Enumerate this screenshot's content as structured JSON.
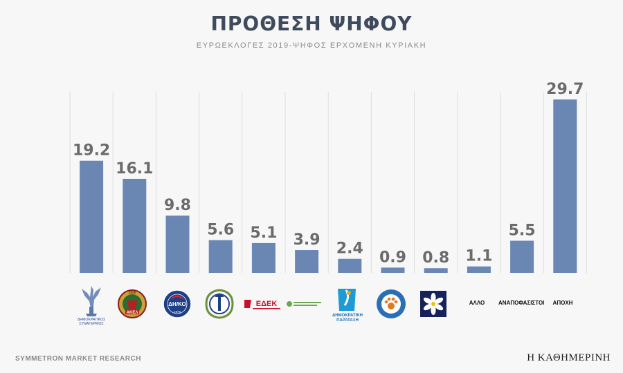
{
  "title": "ΠΡΟΘΕΣΗ ΨΗΦΟΥ",
  "subtitle": "ΕΥΡΩΕΚΛΟΓΕΣ 2019-ΨΗΦΟΣ ΕΡΧΟΜΕΝΗ ΚΥΡΙΑΚΗ",
  "footer": {
    "source": "SYMMETRON MARKET RESEARCH",
    "publisher": "Η ΚΑΘΗΜΕΡΙΝΗ"
  },
  "colors": {
    "bar": "#6a87b3",
    "value_label": "#6b6b6b",
    "gridline": "#dedede"
  },
  "logos": {
    "disy": {
      "icon": "winged-victory-icon",
      "line1": "ΔΗΜΟΚΡΑΤΙΚΟΣ",
      "line2": "ΣΥΝΑΓΕΡΜΟΣ"
    },
    "akel": {
      "icon": "akel-emblem-icon",
      "year": "1926",
      "name": "ΑΚΕΛ"
    },
    "diko": {
      "icon": "diko-emblem-icon",
      "name": "ΔΗ/ΚΟ",
      "year": "1976"
    },
    "elam": {
      "icon": "elam-emblem-icon"
    },
    "edek": {
      "icon": "edek-logo-icon",
      "name": "ΕΔΕΚ"
    },
    "greens": {
      "icon": "greens-logo-icon"
    },
    "dipa": {
      "icon": "dipa-logo-icon",
      "line1": "ΔΗΜΟΚΡΑΤΙΚΗ",
      "line2": "ΠΑΡΑΤΑΞΗ"
    },
    "animal": {
      "icon": "paw-emblem-icon"
    },
    "jasmine": {
      "icon": "jasmine-flower-icon"
    }
  },
  "chart_data": {
    "type": "bar",
    "title": "ΠΡΟΘΕΣΗ ΨΗΦΟΥ",
    "subtitle": "ΕΥΡΩΕΚΛΟΓΕΣ 2019-ΨΗΦΟΣ ΕΡΧΟΜΕΝΗ ΚΥΡΙΑΚΗ",
    "categories": [
      "ΔΗΣΥ",
      "ΑΚΕΛ",
      "ΔΗΚΟ",
      "ΕΛΑΜ",
      "ΕΔΕΚ",
      "Οικολόγοι",
      "ΔΗΠΑ",
      "Κόμμα για τα Ζώα",
      "Γιασεμί",
      "ΑΛΛΟ",
      "ΑΝΑΠΟΦΑΣΙΣΤΟΙ",
      "ΑΠΟΧΗ"
    ],
    "category_display": [
      "",
      "",
      "",
      "",
      "",
      "",
      "",
      "",
      "",
      "ΑΛΛΟ",
      "ΑΝΑΠΟΦΑΣΙΣΤΟΙ",
      "ΑΠΟΧΗ"
    ],
    "values": [
      19.2,
      16.1,
      9.8,
      5.6,
      5.1,
      3.9,
      2.4,
      0.9,
      0.8,
      1.1,
      5.5,
      29.7
    ],
    "value_labels": [
      "19.2",
      "16.1",
      "9.8",
      "5.6",
      "5.1",
      "3.9",
      "2.4",
      "0.9",
      "0.8",
      "1.1",
      "5.5",
      "29.7"
    ],
    "ylim": [
      0,
      32
    ],
    "grid": "vertical",
    "xlabel": "",
    "ylabel": ""
  }
}
